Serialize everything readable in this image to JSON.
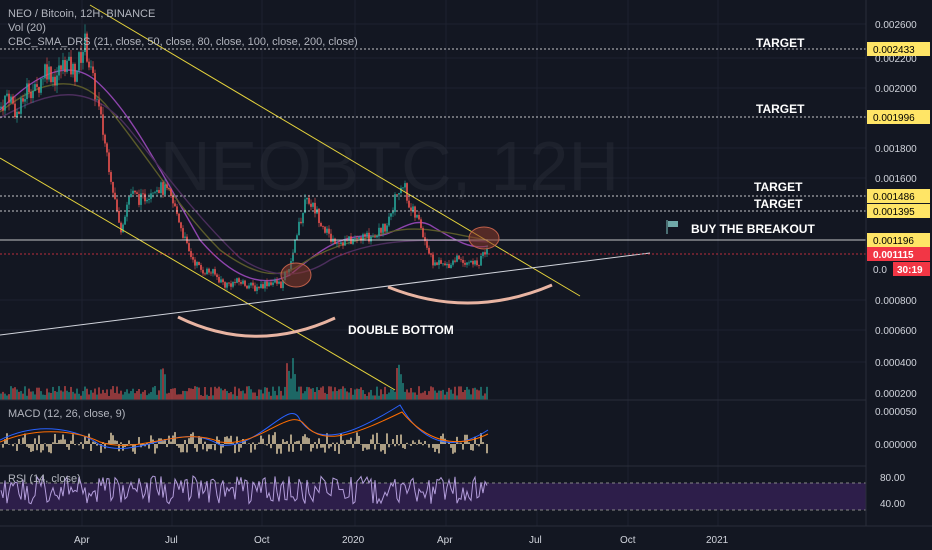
{
  "header": {
    "symbol_line": "NEO / Bitcoin, 12H, BINANCE",
    "vol_line": "Vol (20)",
    "sma_line": "CBC_SMA_DRS (21, close, 50, close, 80, close, 100, close, 200, close)"
  },
  "watermark": "NEOBTC, 12H",
  "macd": {
    "label": "MACD (12, 26, close, 9)"
  },
  "rsi": {
    "label": "RSI (14, close)",
    "ticks": [
      "80.00",
      "40.00"
    ]
  },
  "timer": "30:19",
  "colors": {
    "background": "#131722",
    "up": "#26a69a",
    "down": "#ef5350",
    "trend": "#e4d23c",
    "support": "#d1d4dc",
    "target_box": "#ffe566",
    "price_box": "#f23645",
    "arc": "#e8b4a2",
    "rsi_band": "#2d1e4a"
  },
  "chart_data": {
    "type": "candlestick",
    "title": "NEO / Bitcoin, 12H, BINANCE",
    "x_ticks": [
      "Apr",
      "Jul",
      "Oct",
      "2020",
      "Apr",
      "Jul",
      "Oct",
      "2021"
    ],
    "y_ticks": [
      "0.002600",
      "0.002200",
      "0.002000",
      "0.001800",
      "0.001600",
      "0.000800",
      "0.000600",
      "0.000400",
      "0.000200"
    ],
    "ylim": [
      0.0002,
      0.0027
    ],
    "price_path": [
      [
        0,
        0.00205
      ],
      [
        8,
        0.00215
      ],
      [
        18,
        0.002
      ],
      [
        28,
        0.0022
      ],
      [
        36,
        0.00215
      ],
      [
        45,
        0.00232
      ],
      [
        55,
        0.00225
      ],
      [
        65,
        0.00235
      ],
      [
        75,
        0.00228
      ],
      [
        85,
        0.00248
      ],
      [
        92,
        0.00225
      ],
      [
        100,
        0.002
      ],
      [
        110,
        0.00165
      ],
      [
        120,
        0.00125
      ],
      [
        130,
        0.0015
      ],
      [
        142,
        0.00145
      ],
      [
        155,
        0.00155
      ],
      [
        168,
        0.0015
      ],
      [
        178,
        0.00135
      ],
      [
        188,
        0.00112
      ],
      [
        200,
        0.001
      ],
      [
        212,
        0.00098
      ],
      [
        225,
        0.0009
      ],
      [
        240,
        0.00092
      ],
      [
        255,
        0.00088
      ],
      [
        270,
        0.00092
      ],
      [
        282,
        0.0009
      ],
      [
        290,
        0.00105
      ],
      [
        298,
        0.00125
      ],
      [
        306,
        0.00148
      ],
      [
        316,
        0.00138
      ],
      [
        330,
        0.0012
      ],
      [
        345,
        0.00118
      ],
      [
        360,
        0.0012
      ],
      [
        372,
        0.00122
      ],
      [
        385,
        0.00128
      ],
      [
        395,
        0.00145
      ],
      [
        402,
        0.0016
      ],
      [
        410,
        0.0014
      ],
      [
        420,
        0.0013
      ],
      [
        432,
        0.00105
      ],
      [
        445,
        0.00102
      ],
      [
        458,
        0.00108
      ],
      [
        470,
        0.00104
      ],
      [
        480,
        0.00104
      ],
      [
        488,
        0.00118
      ]
    ],
    "targets": [
      {
        "label": "TARGET",
        "price": "0.002433"
      },
      {
        "label": "TARGET",
        "price": "0.001996"
      },
      {
        "label": "TARGET",
        "price": "0.001486"
      },
      {
        "label": "TARGET",
        "price": "0.001395"
      }
    ],
    "level_1196": "0.001196",
    "current_price": "0.001115",
    "current_price_partial": "0.0",
    "annotations": {
      "breakout": "BUY THE BREAKOUT",
      "double_bottom": "DOUBLE BOTTOM"
    },
    "macd_ticks": [
      "0.000050",
      "0.000000"
    ]
  }
}
